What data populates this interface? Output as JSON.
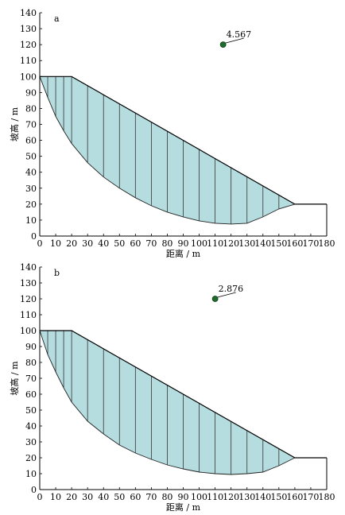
{
  "chart_data": [
    {
      "type": "line",
      "panel_label": "a",
      "xlabel": "距离 / m",
      "ylabel": "坡高 / m",
      "xlim": [
        0,
        180
      ],
      "ylim": [
        0,
        140
      ],
      "xticks": [
        0,
        10,
        20,
        30,
        40,
        50,
        60,
        70,
        80,
        90,
        100,
        110,
        120,
        130,
        140,
        150,
        160,
        170,
        180
      ],
      "yticks": [
        0,
        10,
        20,
        30,
        40,
        50,
        60,
        70,
        80,
        90,
        100,
        110,
        120,
        130,
        140
      ],
      "slope_profile": {
        "x": [
          0,
          20,
          160,
          180
        ],
        "y": [
          100,
          100,
          20,
          20
        ]
      },
      "slip_surface": {
        "x": [
          0,
          5,
          10,
          15,
          20,
          30,
          40,
          50,
          60,
          70,
          80,
          90,
          100,
          110,
          120,
          130,
          140,
          150,
          160
        ],
        "y": [
          100,
          87,
          75,
          66,
          58,
          46,
          37,
          30,
          24,
          19,
          15,
          12,
          9.5,
          8,
          7.5,
          8,
          12,
          17,
          20
        ]
      },
      "slice_boundaries_x": [
        5,
        10,
        15,
        20,
        30,
        40,
        50,
        60,
        70,
        80,
        90,
        100,
        110,
        120,
        130,
        140,
        150
      ],
      "slip_center": {
        "x": 115,
        "y": 120
      },
      "safety_factor": "4.567",
      "grid": false,
      "fill_color": "#b5dcdf",
      "center_color": "#1e6b2a"
    },
    {
      "type": "line",
      "panel_label": "b",
      "xlabel": "距离 / m",
      "ylabel": "坡高 / m",
      "xlim": [
        0,
        180
      ],
      "ylim": [
        0,
        140
      ],
      "xticks": [
        0,
        10,
        20,
        30,
        40,
        50,
        60,
        70,
        80,
        90,
        100,
        110,
        120,
        130,
        140,
        150,
        160,
        170,
        180
      ],
      "yticks": [
        0,
        10,
        20,
        30,
        40,
        50,
        60,
        70,
        80,
        90,
        100,
        110,
        120,
        130,
        140
      ],
      "slope_profile": {
        "x": [
          0,
          20,
          160,
          180
        ],
        "y": [
          100,
          100,
          20,
          20
        ]
      },
      "slip_surface": {
        "x": [
          0,
          5,
          10,
          15,
          20,
          30,
          40,
          50,
          60,
          70,
          80,
          90,
          100,
          110,
          120,
          130,
          140,
          150,
          160
        ],
        "y": [
          100,
          85,
          74,
          64,
          55,
          43,
          35,
          28,
          23,
          19,
          15.5,
          13,
          11,
          10,
          9.5,
          10,
          11,
          15,
          20
        ]
      },
      "slice_boundaries_x": [
        5,
        10,
        15,
        20,
        30,
        40,
        50,
        60,
        70,
        80,
        90,
        100,
        110,
        120,
        130,
        140,
        150
      ],
      "slip_center": {
        "x": 110,
        "y": 120
      },
      "safety_factor": "2.876",
      "grid": false,
      "fill_color": "#b5dcdf",
      "center_color": "#1e6b2a"
    }
  ]
}
